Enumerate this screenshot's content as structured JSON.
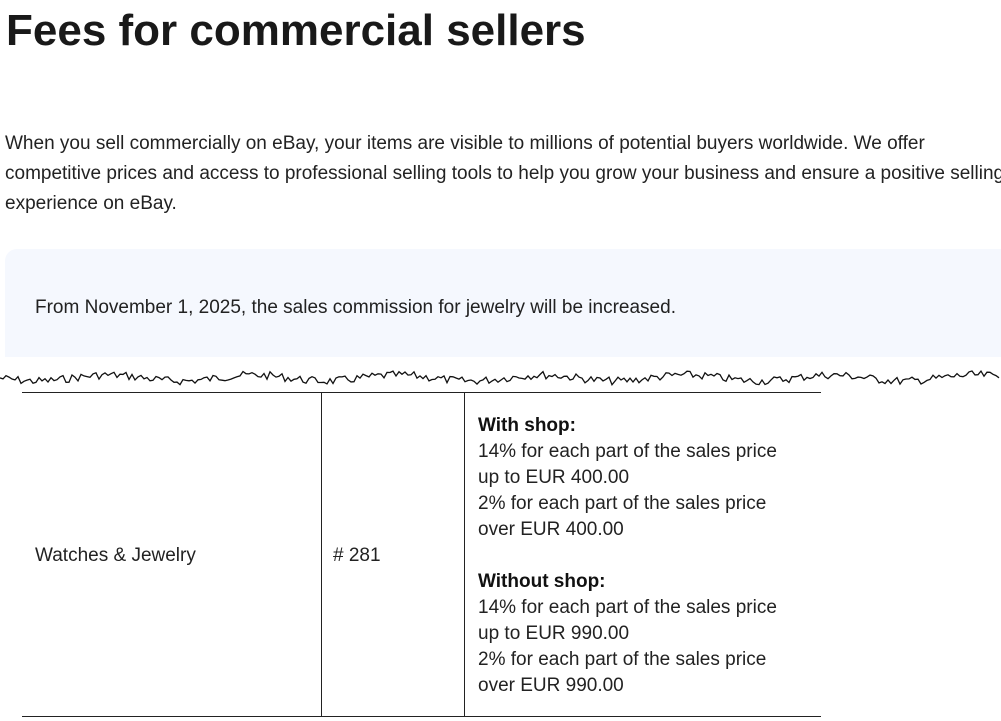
{
  "title": "Fees for commercial sellers",
  "intro": "When you sell commercially on eBay, your items are visible to millions of potential buyers worldwide. We offer competitive prices and access to professional selling tools to help you grow your business and ensure a positive selling experience on eBay.",
  "notice": "From November 1, 2025, the sales commission for jewelry will be increased.",
  "table": {
    "row": {
      "category": "Watches & Jewelry",
      "number": "# 281",
      "with_shop_heading": "With shop:",
      "with_shop_lines": [
        "14% for each part of the sales price",
        "up to EUR 400.00",
        "2% for each part of the sales price",
        "over EUR 400.00"
      ],
      "without_shop_heading": "Without shop:",
      "without_shop_lines": [
        "14% for each part of the sales price",
        "up to EUR 990.00",
        "2% for each part of the sales price",
        "over EUR 990.00"
      ]
    }
  }
}
